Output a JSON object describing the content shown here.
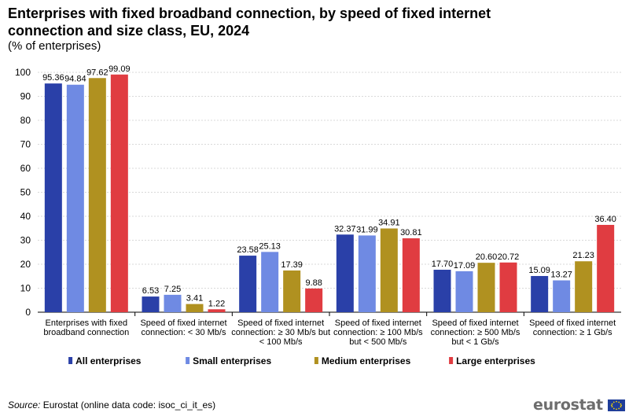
{
  "title": "Enterprises with fixed broadband connection, by speed of fixed internet connection and size class, EU, 2024",
  "subtitle": "(% of enterprises)",
  "source_label": "Source:",
  "source_text": " Eurostat (online data code: isoc_ci_it_es)",
  "logo_text": "eurostat",
  "chart_data": {
    "type": "bar",
    "title": "Enterprises with fixed broadband connection, by speed of fixed internet connection and size class, EU, 2024",
    "ylabel": "% of enterprises",
    "ylim": [
      0,
      100
    ],
    "yticks": [
      0,
      10,
      20,
      30,
      40,
      50,
      60,
      70,
      80,
      90,
      100
    ],
    "grid": true,
    "legend_position": "bottom",
    "categories": [
      [
        "Enterprises with fixed",
        "broadband connection"
      ],
      [
        "Speed of fixed internet",
        "connection: < 30 Mb/s"
      ],
      [
        "Speed of fixed internet",
        "connection: ≥ 30 Mb/s but",
        "< 100 Mb/s"
      ],
      [
        "Speed of fixed internet",
        "connection: ≥ 100 Mb/s",
        "but < 500 Mb/s"
      ],
      [
        "Speed of fixed internet",
        "connection: ≥ 500 Mb/s",
        "but < 1 Gb/s"
      ],
      [
        "Speed of fixed internet",
        "connection: ≥ 1 Gb/s"
      ]
    ],
    "series": [
      {
        "name": "All enterprises",
        "color": "#2a40a8",
        "values": [
          95.36,
          6.53,
          23.58,
          32.37,
          17.7,
          15.09
        ]
      },
      {
        "name": "Small enterprises",
        "color": "#6f8ae3",
        "values": [
          94.84,
          7.25,
          25.13,
          31.99,
          17.09,
          13.27
        ]
      },
      {
        "name": "Medium enterprises",
        "color": "#b09120",
        "values": [
          97.62,
          3.41,
          17.39,
          34.91,
          20.6,
          21.23
        ]
      },
      {
        "name": "Large enterprises",
        "color": "#e03c41",
        "values": [
          99.09,
          1.22,
          9.88,
          30.81,
          20.72,
          36.4
        ]
      }
    ]
  }
}
